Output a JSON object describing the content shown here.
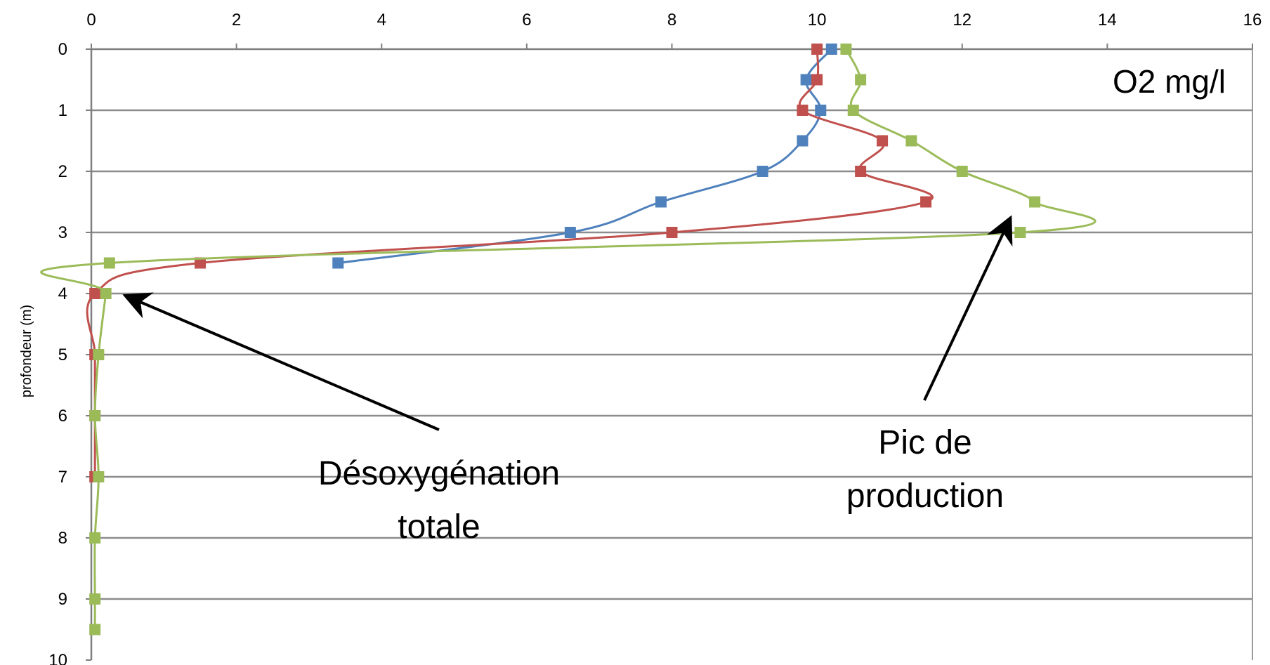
{
  "chart_data": {
    "type": "line",
    "title": "",
    "xlabel": "",
    "ylabel": "profondeur (m)",
    "unit_label": "O2 mg/l",
    "x_axis_position": "top",
    "y_axis_inverted": true,
    "xlim": [
      0,
      16
    ],
    "ylim": [
      0,
      10
    ],
    "x_ticks": [
      "0",
      "2",
      "4",
      "6",
      "8",
      "10",
      "12",
      "14",
      "16"
    ],
    "y_ticks": [
      "0",
      "1",
      "2",
      "3",
      "4",
      "5",
      "6",
      "7",
      "8",
      "9",
      "10"
    ],
    "grid": "horizontal",
    "legend": "none",
    "series": [
      {
        "color": "#4f81bd",
        "points": [
          [
            10.2,
            0
          ],
          [
            9.85,
            0.5
          ],
          [
            10.05,
            1
          ],
          [
            9.8,
            1.5
          ],
          [
            9.25,
            2
          ],
          [
            7.85,
            2.5
          ],
          [
            6.6,
            3
          ],
          [
            3.4,
            3.5
          ]
        ]
      },
      {
        "color": "#c0504d",
        "points": [
          [
            10.0,
            0
          ],
          [
            10.0,
            0.5
          ],
          [
            9.8,
            1
          ],
          [
            10.9,
            1.5
          ],
          [
            10.6,
            2
          ],
          [
            11.5,
            2.5
          ],
          [
            8.0,
            3
          ],
          [
            1.5,
            3.5
          ],
          [
            0.05,
            4
          ],
          [
            0.05,
            5
          ],
          [
            0.05,
            6
          ],
          [
            0.05,
            7
          ]
        ]
      },
      {
        "color": "#9bbb59",
        "points": [
          [
            10.4,
            0
          ],
          [
            10.6,
            0.5
          ],
          [
            10.5,
            1
          ],
          [
            11.3,
            1.5
          ],
          [
            12.0,
            2
          ],
          [
            13.0,
            2.5
          ],
          [
            12.8,
            3
          ],
          [
            0.25,
            3.5
          ],
          [
            0.2,
            4
          ],
          [
            0.1,
            5
          ],
          [
            0.05,
            6
          ],
          [
            0.1,
            7
          ],
          [
            0.05,
            8
          ],
          [
            0.05,
            9
          ],
          [
            0.05,
            9.5
          ]
        ]
      }
    ],
    "annotations": [
      {
        "lines": [
          "Désoxygénation",
          "totale"
        ],
        "points_to": [
          0.5,
          4.05
        ]
      },
      {
        "lines": [
          "Pic de",
          "production"
        ],
        "points_to": [
          12.65,
          2.8
        ]
      }
    ]
  }
}
